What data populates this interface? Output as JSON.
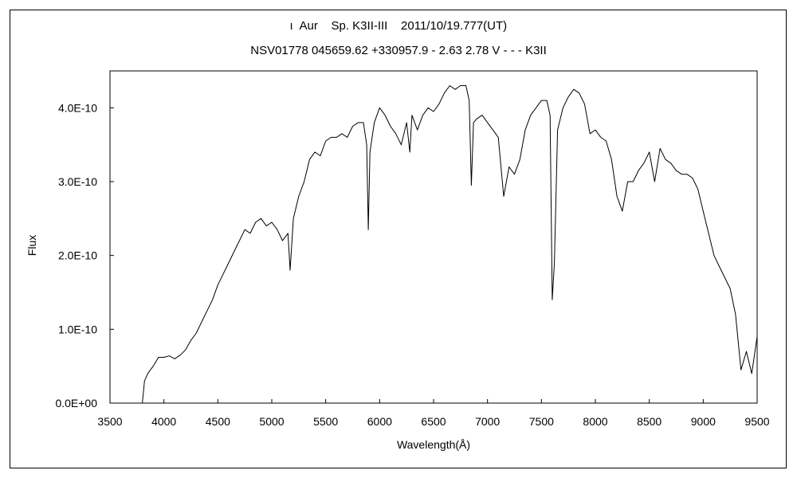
{
  "chart_data": {
    "type": "line",
    "title": "ι  Aur    Sp. K3II-III    2011/10/19.777(UT)",
    "subtitle": "NSV01778 045659.62 +330957.9 - 2.63 2.78 V - - - K3II",
    "xlabel": "Wavelength(Å)",
    "ylabel": "Flux",
    "xlim": [
      3500,
      9500
    ],
    "ylim": [
      0,
      4.5e-10
    ],
    "x_ticks": [
      3500,
      4000,
      4500,
      5000,
      5500,
      6000,
      6500,
      7000,
      7500,
      8000,
      8500,
      9000,
      9500
    ],
    "y_ticks": [
      0,
      1e-10,
      2e-10,
      3e-10,
      4e-10
    ],
    "y_tick_labels": [
      "0.0E+00",
      "1.0E-10",
      "2.0E-10",
      "3.0E-10",
      "4.0E-10"
    ],
    "grid": false,
    "series": [
      {
        "color": "#000000",
        "x": [
          3800,
          3820,
          3850,
          3900,
          3950,
          4000,
          4050,
          4100,
          4150,
          4200,
          4250,
          4300,
          4350,
          4400,
          4450,
          4500,
          4550,
          4600,
          4650,
          4700,
          4750,
          4800,
          4850,
          4900,
          4950,
          5000,
          5050,
          5100,
          5150,
          5170,
          5200,
          5250,
          5300,
          5350,
          5400,
          5450,
          5500,
          5550,
          5600,
          5650,
          5700,
          5750,
          5800,
          5850,
          5880,
          5895,
          5910,
          5950,
          6000,
          6050,
          6100,
          6150,
          6200,
          6250,
          6280,
          6300,
          6350,
          6400,
          6450,
          6500,
          6550,
          6600,
          6650,
          6700,
          6750,
          6800,
          6830,
          6850,
          6870,
          6900,
          6950,
          7000,
          7050,
          7100,
          7150,
          7200,
          7250,
          7300,
          7350,
          7400,
          7450,
          7500,
          7550,
          7580,
          7600,
          7620,
          7650,
          7700,
          7750,
          7800,
          7850,
          7900,
          7950,
          8000,
          8050,
          8100,
          8150,
          8200,
          8250,
          8300,
          8350,
          8400,
          8450,
          8500,
          8550,
          8600,
          8650,
          8700,
          8750,
          8800,
          8850,
          8900,
          8950,
          9000,
          9050,
          9100,
          9150,
          9200,
          9250,
          9300,
          9350,
          9400,
          9450,
          9500
        ],
        "values": [
          0.0,
          3e-11,
          4e-11,
          5e-11,
          6.2e-11,
          6.2e-11,
          6.4e-11,
          6e-11,
          6.5e-11,
          7.2e-11,
          8.5e-11,
          9.5e-11,
          1.1e-10,
          1.25e-10,
          1.4e-10,
          1.6e-10,
          1.75e-10,
          1.9e-10,
          2.05e-10,
          2.2e-10,
          2.35e-10,
          2.3e-10,
          2.45e-10,
          2.5e-10,
          2.4e-10,
          2.45e-10,
          2.35e-10,
          2.2e-10,
          2.3e-10,
          1.8e-10,
          2.5e-10,
          2.8e-10,
          3e-10,
          3.3e-10,
          3.4e-10,
          3.35e-10,
          3.55e-10,
          3.6e-10,
          3.6e-10,
          3.65e-10,
          3.6e-10,
          3.75e-10,
          3.8e-10,
          3.8e-10,
          3.5e-10,
          2.35e-10,
          3.4e-10,
          3.8e-10,
          4e-10,
          3.9e-10,
          3.75e-10,
          3.65e-10,
          3.5e-10,
          3.8e-10,
          3.4e-10,
          3.9e-10,
          3.7e-10,
          3.9e-10,
          4e-10,
          3.95e-10,
          4.05e-10,
          4.2e-10,
          4.3e-10,
          4.25e-10,
          4.3e-10,
          4.3e-10,
          4.1e-10,
          2.95e-10,
          3.8e-10,
          3.85e-10,
          3.9e-10,
          3.8e-10,
          3.7e-10,
          3.6e-10,
          2.8e-10,
          3.2e-10,
          3.1e-10,
          3.3e-10,
          3.7e-10,
          3.9e-10,
          4e-10,
          4.1e-10,
          4.1e-10,
          3.9e-10,
          1.4e-10,
          1.9e-10,
          3.7e-10,
          4e-10,
          4.15e-10,
          4.25e-10,
          4.2e-10,
          4.05e-10,
          3.65e-10,
          3.7e-10,
          3.6e-10,
          3.55e-10,
          3.3e-10,
          2.8e-10,
          2.6e-10,
          3e-10,
          3e-10,
          3.15e-10,
          3.25e-10,
          3.4e-10,
          3e-10,
          3.45e-10,
          3.3e-10,
          3.25e-10,
          3.15e-10,
          3.1e-10,
          3.1e-10,
          3.05e-10,
          2.9e-10,
          2.6e-10,
          2.3e-10,
          2e-10,
          1.85e-10,
          1.7e-10,
          1.55e-10,
          1.2e-10,
          4.5e-11,
          7e-11,
          4e-11,
          9e-11
        ]
      }
    ]
  }
}
